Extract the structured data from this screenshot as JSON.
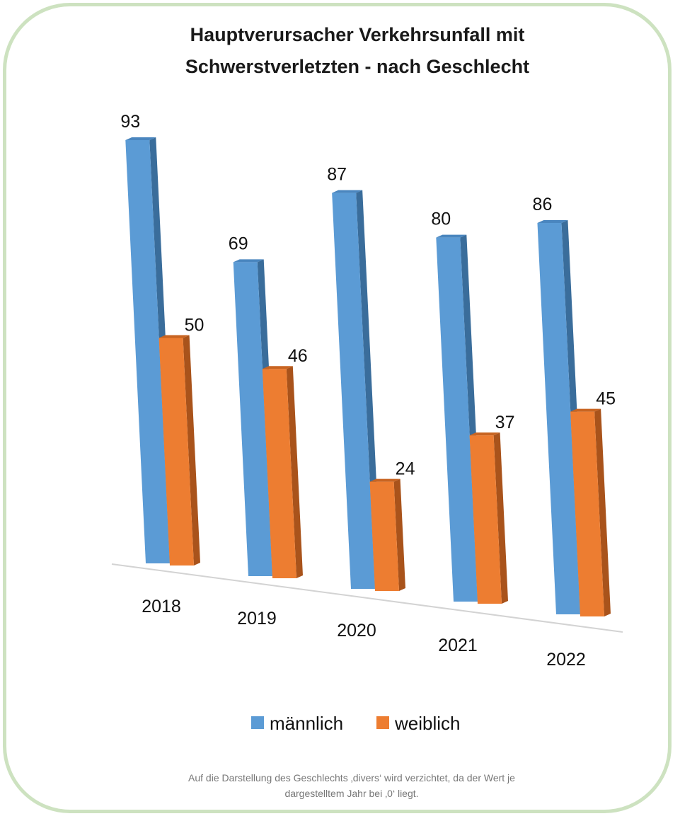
{
  "chart_data": {
    "type": "bar",
    "title_lines": [
      "Hauptverursacher Verkehrsunfall mit",
      "Schwerstverletzten - nach Geschlecht"
    ],
    "categories": [
      "2018",
      "2019",
      "2020",
      "2021",
      "2022"
    ],
    "series": [
      {
        "name": "männlich",
        "values": [
          93,
          69,
          87,
          80,
          86
        ],
        "color": "#5b9bd5",
        "side_color": "#3a6d9b",
        "top_color": "#4a86bf"
      },
      {
        "name": "weiblich",
        "values": [
          50,
          46,
          24,
          37,
          45
        ],
        "color": "#ed7d31",
        "side_color": "#a9531b",
        "top_color": "#c86421"
      }
    ],
    "legend_position": "bottom",
    "grid": false
  },
  "footnote_lines": [
    "Auf die Darstellung des Geschlechts ‚divers‘ wird verzichtet, da der Wert je",
    "dargestelltem Jahr bei ‚0‘ liegt."
  ],
  "frame_color": "#cde2c0"
}
